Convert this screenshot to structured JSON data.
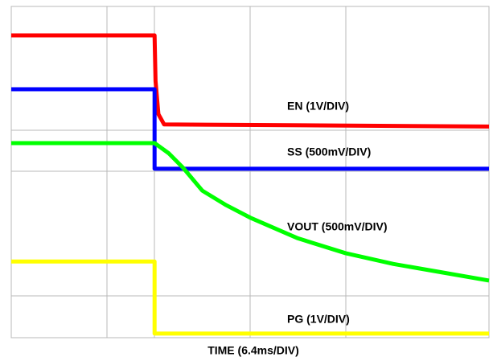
{
  "chart_data": {
    "type": "line",
    "x_label": "TIME (6.4ms/DIV)",
    "xlim": [
      0,
      10
    ],
    "ylim": [
      0,
      8
    ],
    "series": [
      {
        "name": "EN (1V/DIV)",
        "color": "#ff0000",
        "x": [
          0,
          3.0,
          3.02,
          3.08,
          3.2,
          10
        ],
        "values": [
          7.3,
          7.3,
          6.2,
          5.4,
          5.15,
          5.1
        ]
      },
      {
        "name": "SS (500mV/DIV)",
        "color": "#0000ff",
        "x": [
          0,
          3.0,
          3.0,
          10
        ],
        "values": [
          6.0,
          6.0,
          4.08,
          4.08
        ]
      },
      {
        "name": "VOUT (500mV/DIV)",
        "color": "#00ff00",
        "x": [
          0,
          3.0,
          3.3,
          3.6,
          4,
          4.5,
          5,
          6,
          7,
          8,
          9,
          10
        ],
        "values": [
          4.7,
          4.7,
          4.45,
          4.1,
          3.55,
          3.2,
          2.9,
          2.4,
          2.04,
          1.78,
          1.58,
          1.38
        ]
      },
      {
        "name": "PG (1V/DIV)",
        "color": "#ffff00",
        "x": [
          0,
          3.0,
          3.0,
          10
        ],
        "values": [
          1.84,
          1.84,
          0.1,
          0.1
        ]
      }
    ]
  }
}
